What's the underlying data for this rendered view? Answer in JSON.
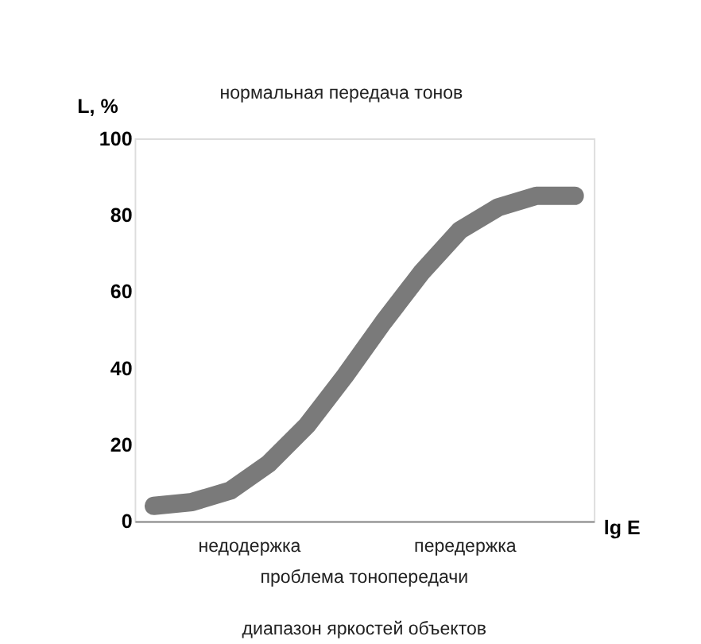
{
  "chart_data": {
    "type": "line",
    "ylabel": "L, %",
    "xlabel": "lg E",
    "categories": [
      null,
      null,
      null,
      null,
      null,
      null,
      null,
      null,
      null,
      null,
      null,
      null
    ],
    "series": [
      {
        "color": "#7a7a7a",
        "values": [
          4,
          5,
          8,
          15,
          25,
          38,
          52,
          65,
          76,
          82,
          85,
          85
        ]
      }
    ],
    "ylim": [
      0,
      100
    ],
    "yticks": [
      0,
      20,
      40,
      60,
      80,
      100
    ],
    "grid": false,
    "tick_labels": "y",
    "line_style": "solid",
    "marker": "none",
    "annotations": [
      "нормальная передача тонов",
      "недодержка",
      "передержка",
      "проблема тонопередачи",
      "диапазон яркостей объектов"
    ]
  }
}
